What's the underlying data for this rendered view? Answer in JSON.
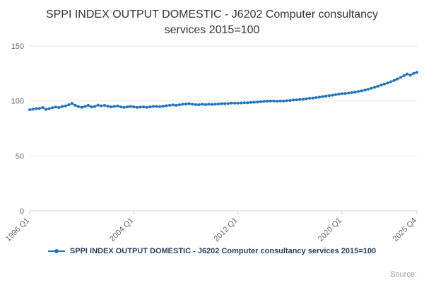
{
  "header": {
    "title": "SPPI INDEX OUTPUT DOMESTIC - J6202 Computer consultancy services 2015=100"
  },
  "legend": {
    "label": "SPPI INDEX OUTPUT DOMESTIC - J6202 Computer consultancy services 2015=100"
  },
  "footer": {
    "source_label": "Source:"
  },
  "colors": {
    "line": "#2073BC",
    "marker": "#2073BC",
    "grid": "#e6e6e6",
    "axis": "#ccd1d9",
    "tick_label": "#666666",
    "title_text": "#333333",
    "legend_text": "#24425e",
    "source_text": "#999999",
    "background": "#ffffff"
  },
  "chart_data": {
    "type": "line",
    "title": "SPPI INDEX OUTPUT DOMESTIC - J6202 Computer consultancy services 2015=100",
    "xlabel": "",
    "ylabel": "",
    "x_unit": "quarter",
    "x_start": "1996 Q1",
    "x_end": "2025 Q4",
    "grid": "horizontal",
    "legend_position": "bottom",
    "marker": "circle",
    "ylim": [
      0,
      150
    ],
    "y_ticks": [
      0,
      50,
      100,
      150
    ],
    "x_ticks": [
      {
        "label": "1996 Q1",
        "index": 0
      },
      {
        "label": "2004 Q1",
        "index": 32
      },
      {
        "label": "2012 Q1",
        "index": 64
      },
      {
        "label": "2020 Q1",
        "index": 96
      },
      {
        "label": "2025 Q4",
        "index": 119
      }
    ],
    "values": [
      92.0,
      92.5,
      93.0,
      93.2,
      94.0,
      92.3,
      93.0,
      93.8,
      94.5,
      94.0,
      95.0,
      95.5,
      96.5,
      97.8,
      96.0,
      94.8,
      94.2,
      95.0,
      96.0,
      94.5,
      95.0,
      96.2,
      95.5,
      96.0,
      95.2,
      94.6,
      95.0,
      95.4,
      94.6,
      94.2,
      94.6,
      95.0,
      94.6,
      94.2,
      94.4,
      94.6,
      94.2,
      94.6,
      95.0,
      95.0,
      94.8,
      95.2,
      95.6,
      96.0,
      96.4,
      96.0,
      96.5,
      97.0,
      97.2,
      97.5,
      97.0,
      96.6,
      96.6,
      97.0,
      96.6,
      97.0,
      96.8,
      97.0,
      97.2,
      97.5,
      97.5,
      97.6,
      98.0,
      98.0,
      98.0,
      98.2,
      98.4,
      98.4,
      98.6,
      98.8,
      99.0,
      99.4,
      99.6,
      99.8,
      100.0,
      100.0,
      99.8,
      100.0,
      100.0,
      100.2,
      100.4,
      100.8,
      101.0,
      101.4,
      101.6,
      102.0,
      102.4,
      102.6,
      103.0,
      103.4,
      104.0,
      104.4,
      104.8,
      105.2,
      105.8,
      106.2,
      106.6,
      106.8,
      107.2,
      107.6,
      108.0,
      108.6,
      109.2,
      109.8,
      110.6,
      111.5,
      112.4,
      113.4,
      114.4,
      115.4,
      116.4,
      117.5,
      118.6,
      120.0,
      121.5,
      123.0,
      124.5,
      123.5,
      125.0,
      126.0
    ]
  }
}
